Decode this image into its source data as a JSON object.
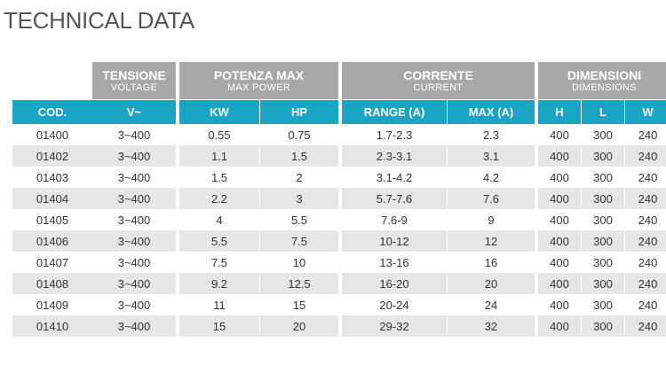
{
  "page": {
    "title": "TECHNICAL DATA"
  },
  "groups": {
    "tensione": {
      "main": "TENSIONE",
      "sub": "VOLTAGE"
    },
    "potenza": {
      "main": "POTENZA MAX",
      "sub": "MAX POWER"
    },
    "corrente": {
      "main": "CORRENTE",
      "sub": "CURRENT"
    },
    "dimensioni": {
      "main": "DIMENSIONI",
      "sub": "DIMENSIONS"
    }
  },
  "headers": {
    "cod": "COD.",
    "voltage": "V~",
    "kw": "KW",
    "hp": "HP",
    "range": "RANGE (A)",
    "max": "MAX (A)",
    "h": "H",
    "l": "L",
    "w": "W"
  },
  "rows": [
    {
      "cod": "01400",
      "v": "3~400",
      "kw": "0.55",
      "hp": "0.75",
      "range": "1.7-2.3",
      "max": "2.3",
      "h": "400",
      "l": "300",
      "w": "240"
    },
    {
      "cod": "01402",
      "v": "3~400",
      "kw": "1.1",
      "hp": "1.5",
      "range": "2.3-3.1",
      "max": "3.1",
      "h": "400",
      "l": "300",
      "w": "240"
    },
    {
      "cod": "01403",
      "v": "3~400",
      "kw": "1.5",
      "hp": "2",
      "range": "3.1-4.2",
      "max": "4.2",
      "h": "400",
      "l": "300",
      "w": "240"
    },
    {
      "cod": "01404",
      "v": "3~400",
      "kw": "2.2",
      "hp": "3",
      "range": "5.7-7.6",
      "max": "7.6",
      "h": "400",
      "l": "300",
      "w": "240"
    },
    {
      "cod": "01405",
      "v": "3~400",
      "kw": "4",
      "hp": "5.5",
      "range": "7.6-9",
      "max": "9",
      "h": "400",
      "l": "300",
      "w": "240"
    },
    {
      "cod": "01406",
      "v": "3~400",
      "kw": "5.5",
      "hp": "7.5",
      "range": "10-12",
      "max": "12",
      "h": "400",
      "l": "300",
      "w": "240"
    },
    {
      "cod": "01407",
      "v": "3~400",
      "kw": "7.5",
      "hp": "10",
      "range": "13-16",
      "max": "16",
      "h": "400",
      "l": "300",
      "w": "240"
    },
    {
      "cod": "01408",
      "v": "3~400",
      "kw": "9.2",
      "hp": "12.5",
      "range": "16-20",
      "max": "20",
      "h": "400",
      "l": "300",
      "w": "240"
    },
    {
      "cod": "01409",
      "v": "3~400",
      "kw": "11",
      "hp": "15",
      "range": "20-24",
      "max": "24",
      "h": "400",
      "l": "300",
      "w": "240"
    },
    {
      "cod": "01410",
      "v": "3~400",
      "kw": "15",
      "hp": "20",
      "range": "29-32",
      "max": "32",
      "h": "400",
      "l": "300",
      "w": "240"
    }
  ]
}
